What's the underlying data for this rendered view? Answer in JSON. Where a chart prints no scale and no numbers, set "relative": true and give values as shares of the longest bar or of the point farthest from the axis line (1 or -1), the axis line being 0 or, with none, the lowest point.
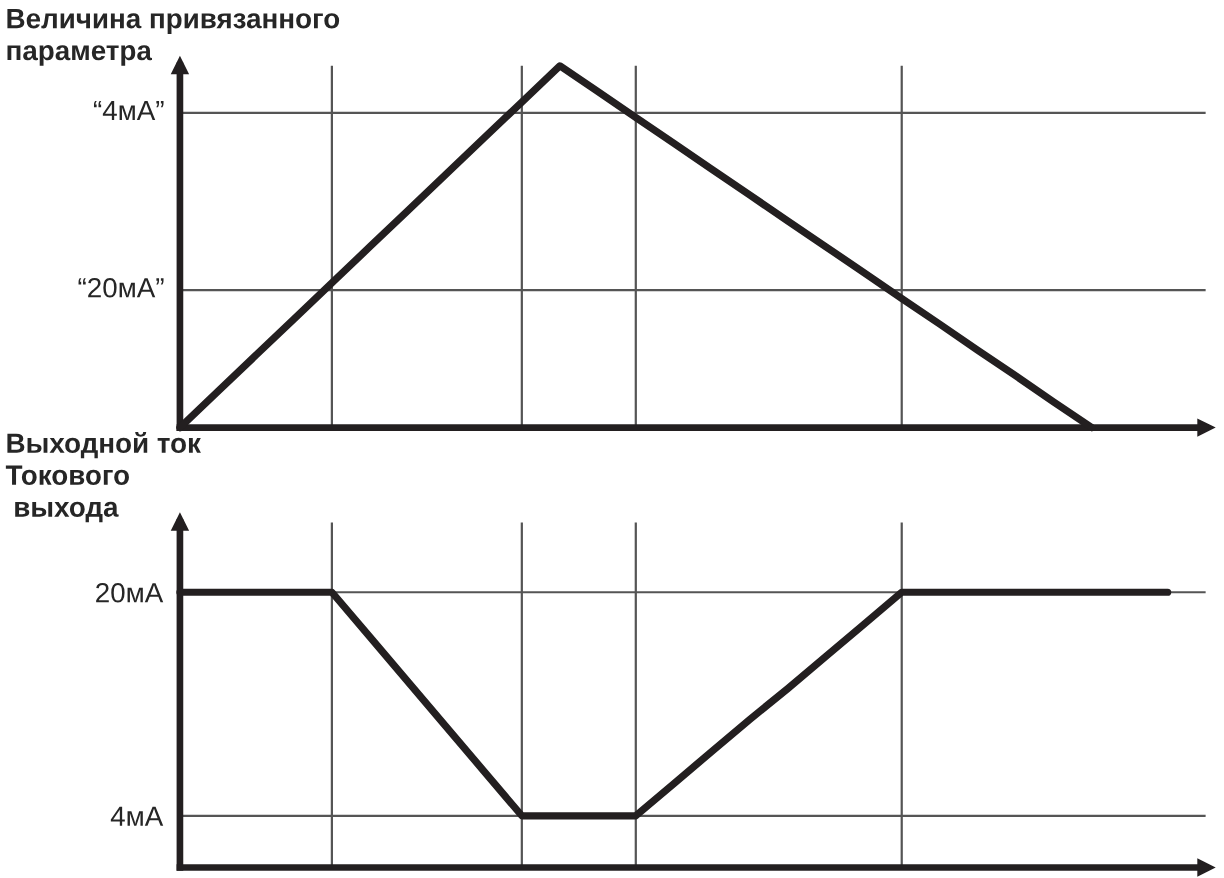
{
  "chart_data": [
    {
      "type": "line",
      "ylabel": "Величина привязанного\nпараметра",
      "relative": true,
      "tick_labels": false,
      "grid": "x",
      "categories": [
        null,
        null,
        null,
        null,
        null,
        null,
        null,
        null,
        null,
        null,
        null,
        null,
        null,
        null,
        null,
        null,
        null,
        null,
        null,
        null,
        null,
        null,
        null,
        null,
        null,
        null,
        null
      ],
      "series": [
        {
          "color": "#231f20",
          "values": [
            0,
            0.1,
            0.2,
            0.3,
            0.4,
            0.5,
            0.6,
            0.7,
            0.8,
            0.9,
            1,
            0.929,
            0.857,
            0.786,
            0.714,
            0.643,
            0.571,
            0.5,
            0.429,
            0.357,
            0.286,
            0.214,
            0.143,
            0.071,
            0,
            null,
            null
          ]
        }
      ],
      "ref_lines": [
        {
          "axis": "y",
          "value": 0.87,
          "label": "“4мА”",
          "color": "#555555"
        },
        {
          "axis": "y",
          "value": 0.38,
          "label": "“20мА”",
          "color": "#555555"
        }
      ]
    },
    {
      "type": "line",
      "ylabel": "Выходной ток\nТокового\n выхода",
      "ylim": [
        0.3,
        25
      ],
      "yticks": [
        {
          "value": 20,
          "label": "20мА"
        },
        {
          "value": 4,
          "label": "4мА"
        }
      ],
      "tick_labels": "y",
      "grid": true,
      "categories": [
        null,
        null,
        null,
        null,
        null,
        null,
        null,
        null,
        null,
        null,
        null,
        null,
        null,
        null,
        null,
        null,
        null,
        null,
        null,
        null,
        null,
        null,
        null,
        null,
        null,
        null,
        null
      ],
      "series": [
        {
          "color": "#231f20",
          "values": [
            20,
            20,
            20,
            20,
            20,
            16.8,
            13.6,
            10.4,
            7.2,
            4,
            4,
            4,
            4,
            6.3,
            8.6,
            10.9,
            13.1,
            15.4,
            17.7,
            20,
            20,
            20,
            20,
            20,
            20,
            20,
            20
          ]
        }
      ]
    }
  ]
}
